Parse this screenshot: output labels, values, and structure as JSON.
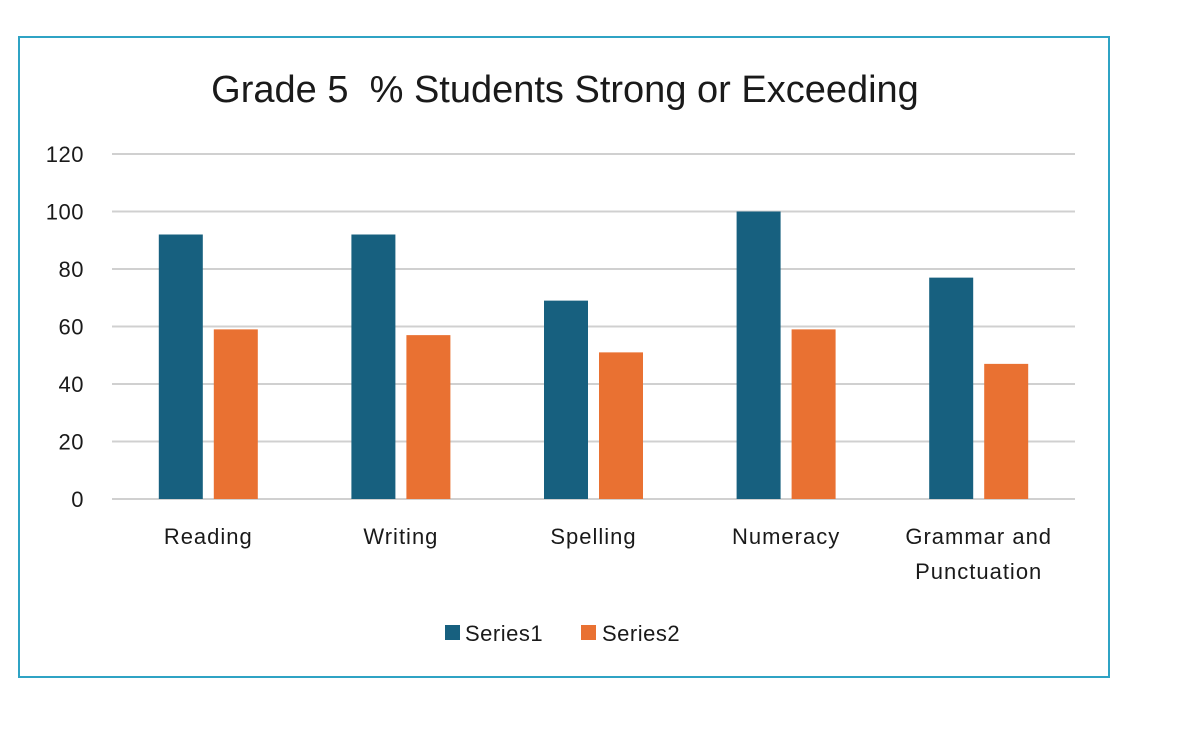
{
  "colors": {
    "series1": "#17607f",
    "series2": "#e97132",
    "frame": "#2fa3c4",
    "grid": "#d0d0d0"
  },
  "chart_data": {
    "type": "bar",
    "title": "Grade 5  % Students Strong or Exceeding",
    "xlabel": "",
    "ylabel": "",
    "categories": [
      [
        "Reading"
      ],
      [
        "Writing"
      ],
      [
        "Spelling"
      ],
      [
        "Numeracy"
      ],
      [
        "Grammar and",
        "Punctuation"
      ]
    ],
    "series": [
      {
        "name": "Series1",
        "values": [
          92,
          92,
          69,
          100,
          77
        ]
      },
      {
        "name": "Series2",
        "values": [
          59,
          57,
          51,
          59,
          47
        ]
      }
    ],
    "ylim": [
      0,
      120
    ],
    "yticks": [
      "0",
      "20",
      "40",
      "60",
      "80",
      "100",
      "120"
    ],
    "grid": true,
    "legend": "bottom"
  }
}
